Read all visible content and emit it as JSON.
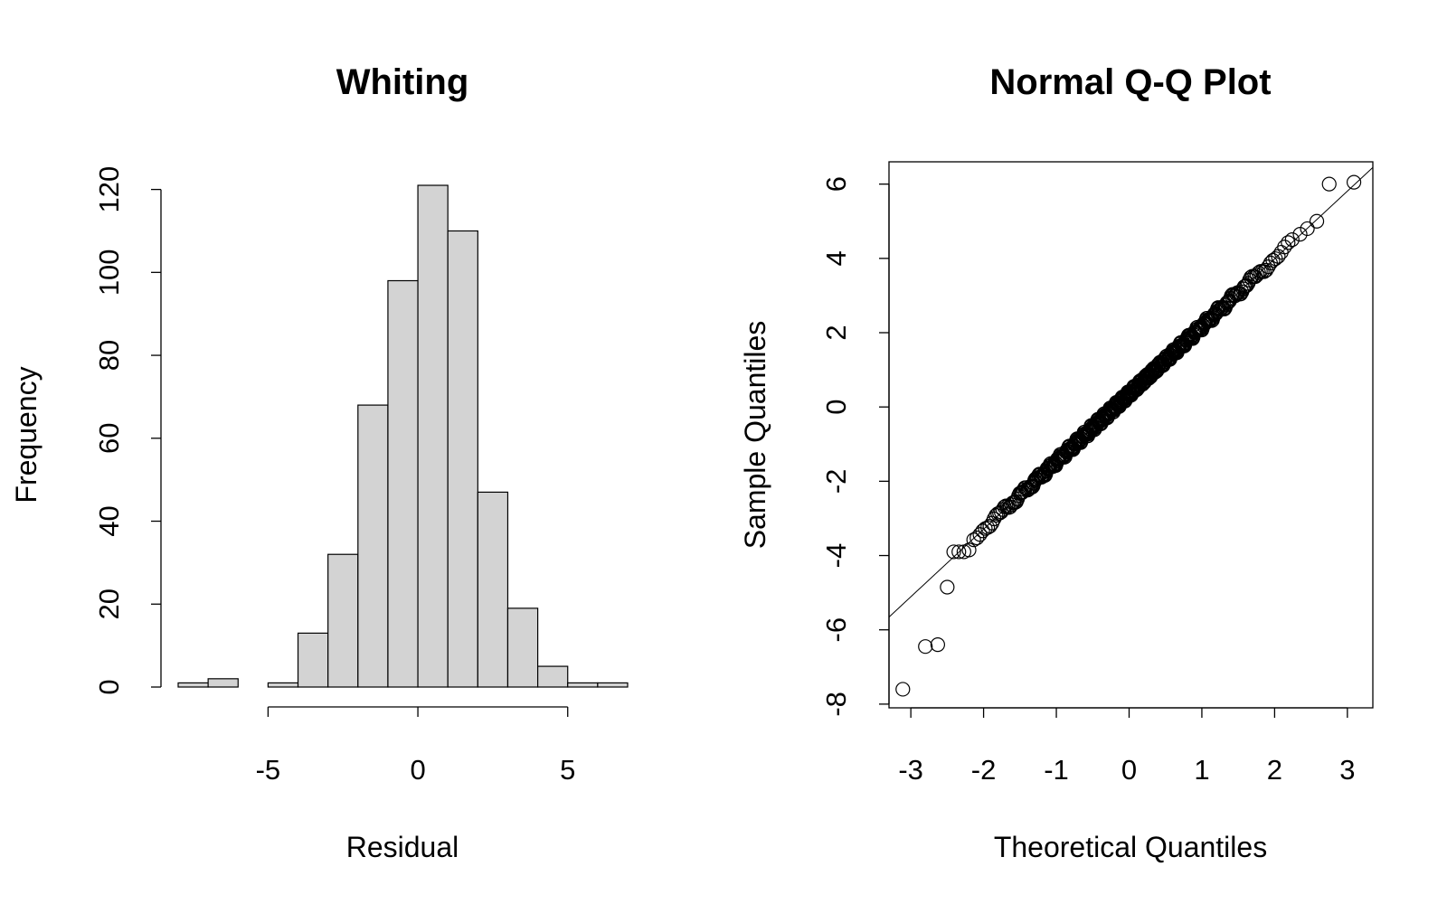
{
  "chart_data": [
    {
      "type": "bar",
      "subtype": "histogram",
      "title": "Whiting",
      "xlabel": "Residual",
      "ylabel": "Frequency",
      "bin_edges": [
        -8,
        -7,
        -6,
        -5,
        -4,
        -3,
        -2,
        -1,
        0,
        1,
        2,
        3,
        4,
        5,
        6,
        7
      ],
      "values": [
        1,
        2,
        0,
        1,
        13,
        32,
        68,
        98,
        121,
        110,
        47,
        19,
        5,
        1,
        1
      ],
      "xticks": [
        -5,
        0,
        5
      ],
      "xtick_labels": [
        "-5",
        "0",
        "5"
      ],
      "yticks": [
        0,
        20,
        40,
        60,
        80,
        100,
        120
      ],
      "ytick_labels": [
        "0",
        "20",
        "40",
        "60",
        "80",
        "100",
        "120"
      ],
      "xlim": [
        -8,
        7
      ],
      "ylim": [
        0,
        121
      ],
      "grid": false
    },
    {
      "type": "scatter",
      "subtype": "normal-qq",
      "title": "Normal Q-Q Plot",
      "xlabel": "Theoretical Quantiles",
      "ylabel": "Sample Quantiles",
      "xticks": [
        -3,
        -2,
        -1,
        0,
        1,
        2,
        3
      ],
      "xtick_labels": [
        "-3",
        "-2",
        "-1",
        "0",
        "1",
        "2",
        "3"
      ],
      "yticks": [
        -8,
        -6,
        -4,
        -2,
        0,
        2,
        4,
        6
      ],
      "ytick_labels": [
        "-8",
        "-6",
        "-4",
        "-2",
        "0",
        "2",
        "4",
        "6"
      ],
      "xlim": [
        -3.3,
        3.35
      ],
      "ylim": [
        -8.1,
        6.6
      ],
      "reference_line": {
        "intercept": 0.35,
        "slope": 1.82
      },
      "outliers": [
        {
          "x": -3.11,
          "y": -7.6
        },
        {
          "x": -2.8,
          "y": -6.45
        },
        {
          "x": -2.63,
          "y": -6.4
        },
        {
          "x": -2.5,
          "y": -4.85
        },
        {
          "x": -2.41,
          "y": -3.9
        },
        {
          "x": -2.34,
          "y": -3.9
        },
        {
          "x": -2.27,
          "y": -3.9
        },
        {
          "x": -2.2,
          "y": -3.85
        },
        {
          "x": 2.35,
          "y": 4.65
        },
        {
          "x": 2.45,
          "y": 4.8
        },
        {
          "x": 2.58,
          "y": 5.0
        },
        {
          "x": 2.75,
          "y": 6.0
        },
        {
          "x": 3.09,
          "y": 6.05
        }
      ],
      "n_points": 520,
      "grid": false
    }
  ]
}
